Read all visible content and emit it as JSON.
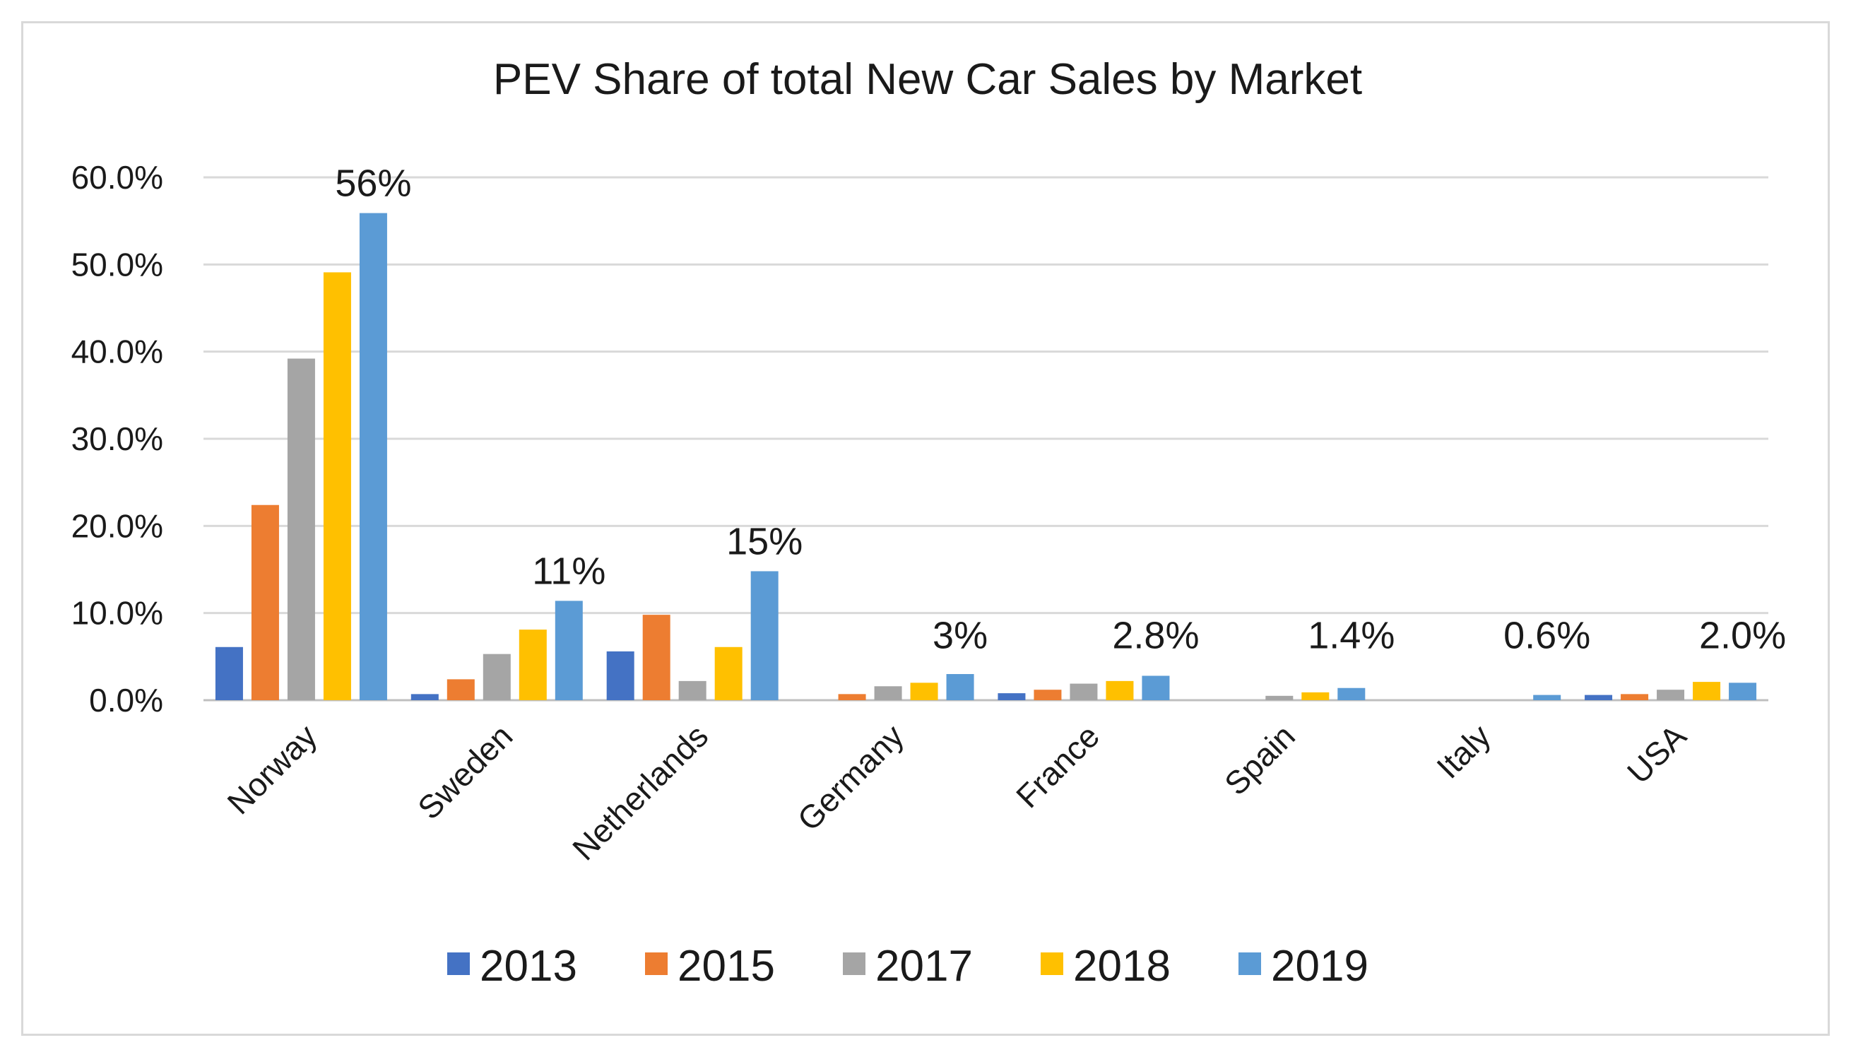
{
  "chart_data": {
    "type": "bar",
    "title": "PEV Share of total New Car Sales by Market",
    "xlabel": "",
    "ylabel": "",
    "categories": [
      "Norway",
      "Sweden",
      "Netherlands",
      "Germany",
      "France",
      "Spain",
      "Italy",
      "USA"
    ],
    "ylim": [
      0,
      60
    ],
    "yticks": [
      0,
      10,
      20,
      30,
      40,
      50,
      60
    ],
    "ytick_labels": [
      "0.0%",
      "10.0%",
      "20.0%",
      "30.0%",
      "40.0%",
      "50.0%",
      "60.0%"
    ],
    "grid": true,
    "legend_position": "bottom",
    "series": [
      {
        "name": "2013",
        "color": "#4472c4",
        "values": [
          6.1,
          0.7,
          5.6,
          0,
          0.8,
          0,
          0,
          0.6
        ]
      },
      {
        "name": "2015",
        "color": "#ed7d31",
        "values": [
          22.4,
          2.4,
          9.8,
          0.7,
          1.2,
          0,
          0,
          0.7
        ]
      },
      {
        "name": "2017",
        "color": "#a5a5a5",
        "values": [
          39.2,
          5.3,
          2.2,
          1.6,
          1.9,
          0.5,
          0,
          1.2
        ]
      },
      {
        "name": "2018",
        "color": "#ffc000",
        "values": [
          49.1,
          8.1,
          6.1,
          2.0,
          2.2,
          0.9,
          0,
          2.1
        ]
      },
      {
        "name": "2019",
        "color": "#5b9bd5",
        "values": [
          55.9,
          11.4,
          14.8,
          3.0,
          2.8,
          1.4,
          0.6,
          2.0
        ]
      }
    ],
    "annotations": [
      {
        "category": "Norway",
        "series": "2019",
        "text": "56%"
      },
      {
        "category": "Sweden",
        "series": "2019",
        "text": "11%"
      },
      {
        "category": "Netherlands",
        "series": "2019",
        "text": "15%"
      },
      {
        "category": "Germany",
        "series": "2019",
        "text": "3%"
      },
      {
        "category": "France",
        "series": "2019",
        "text": "2.8%"
      },
      {
        "category": "Spain",
        "series": "2019",
        "text": "1.4%"
      },
      {
        "category": "Italy",
        "series": "2019",
        "text": "0.6%"
      },
      {
        "category": "USA",
        "series": "2019",
        "text": "2.0%"
      }
    ]
  }
}
